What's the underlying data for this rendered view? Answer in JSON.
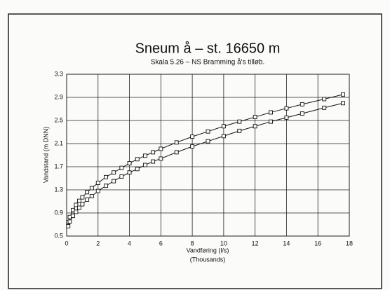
{
  "chart_data": {
    "type": "line",
    "title": "Sneum å – st. 16650 m",
    "subtitle": "Skala 5.26 – NS Bramming å's tilløb.",
    "y_label": "Vandstand (m DNN)",
    "x_label": "Vandføring (l/s)",
    "x_unit_label": "(Thousands)",
    "x": [
      0.1,
      0.2,
      0.4,
      0.6,
      0.8,
      1.0,
      1.3,
      1.6,
      2,
      2.5,
      3,
      3.5,
      4,
      4.5,
      5,
      5.5,
      6,
      7,
      8,
      9,
      10,
      11,
      12,
      13,
      14,
      15,
      16.4,
      17.6
    ],
    "series": [
      {
        "color": "#111111",
        "values": [
          0.74,
          0.83,
          0.95,
          1.04,
          1.11,
          1.17,
          1.26,
          1.33,
          1.42,
          1.52,
          1.6,
          1.68,
          1.76,
          1.83,
          1.89,
          1.95,
          2.01,
          2.12,
          2.22,
          2.31,
          2.4,
          2.48,
          2.56,
          2.64,
          2.71,
          2.78,
          2.87,
          2.95
        ]
      },
      {
        "color": "#111111",
        "values": [
          0.67,
          0.75,
          0.85,
          0.92,
          0.99,
          1.05,
          1.13,
          1.19,
          1.28,
          1.37,
          1.45,
          1.53,
          1.6,
          1.66,
          1.73,
          1.79,
          1.84,
          1.95,
          2.05,
          2.14,
          2.23,
          2.32,
          2.4,
          2.48,
          2.55,
          2.62,
          2.72,
          2.8
        ]
      }
    ],
    "xlim": [
      0,
      18
    ],
    "xticks": [
      0,
      2,
      4,
      6,
      8,
      10,
      12,
      14,
      16,
      18
    ],
    "ylim": [
      0.5,
      3.3
    ],
    "yticks": [
      0.5,
      0.9,
      1.3,
      1.7,
      2.1,
      2.5,
      2.9,
      3.3
    ],
    "grid": true,
    "marker": "square"
  }
}
